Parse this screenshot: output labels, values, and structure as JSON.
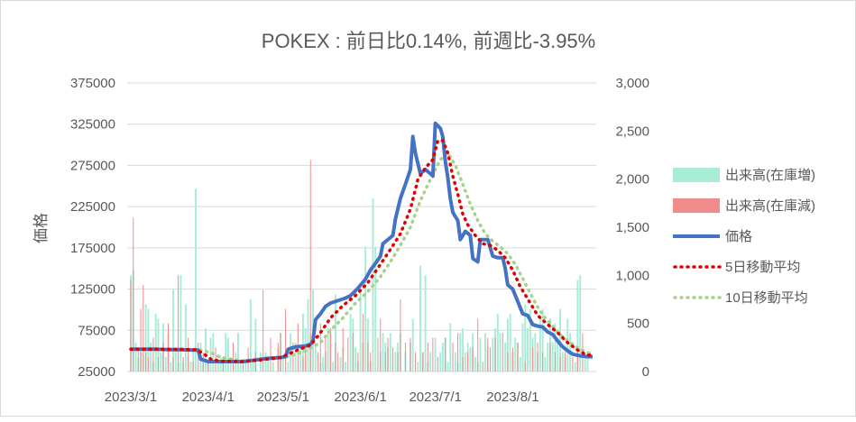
{
  "chart_data": {
    "type": "bar+line",
    "title": "POKEX : 前日比0.14%, 前週比-3.95%",
    "ylabel": "価格",
    "y_left": {
      "min": 25000,
      "max": 375000,
      "ticks": [
        "375000",
        "325000",
        "275000",
        "225000",
        "175000",
        "125000",
        "75000",
        "25000"
      ]
    },
    "y_right": {
      "min": 0,
      "max": 3000,
      "ticks": [
        "3,000",
        "2,500",
        "2,000",
        "1,500",
        "1,000",
        "500",
        "0"
      ]
    },
    "x_ticks": [
      "2023/3/1",
      "2023/4/1",
      "2023/5/1",
      "2023/6/1",
      "2023/7/1",
      "2023/8/1"
    ],
    "x_tick_days": [
      0,
      31,
      61,
      92,
      122,
      153
    ],
    "x_range_days": [
      0,
      185
    ],
    "legend": [
      {
        "key": "vol_inc",
        "label": "出来高(在庫増)",
        "color": "#a8ecd8",
        "style": "box"
      },
      {
        "key": "vol_dec",
        "label": "出来高(在庫減)",
        "color": "#f28b8b",
        "style": "box"
      },
      {
        "key": "price",
        "label": "価格",
        "color": "#4472c4",
        "style": "line"
      },
      {
        "key": "ma5",
        "label": "5日移動平均",
        "color": "#e00000",
        "style": "dotted"
      },
      {
        "key": "ma10",
        "label": "10日移動平均",
        "color": "#a9d18e",
        "style": "dotted"
      }
    ],
    "price_series": [
      [
        0,
        52000
      ],
      [
        5,
        52000
      ],
      [
        10,
        52000
      ],
      [
        15,
        51500
      ],
      [
        20,
        51500
      ],
      [
        25,
        51000
      ],
      [
        27,
        51000
      ],
      [
        28,
        40000
      ],
      [
        31,
        37000
      ],
      [
        35,
        37000
      ],
      [
        40,
        37000
      ],
      [
        45,
        37000
      ],
      [
        50,
        39000
      ],
      [
        55,
        41000
      ],
      [
        60,
        42000
      ],
      [
        62,
        43000
      ],
      [
        63,
        52000
      ],
      [
        66,
        55000
      ],
      [
        70,
        56000
      ],
      [
        72,
        58000
      ],
      [
        73,
        62000
      ],
      [
        74,
        88000
      ],
      [
        76,
        95000
      ],
      [
        78,
        104000
      ],
      [
        80,
        108000
      ],
      [
        83,
        111000
      ],
      [
        86,
        114000
      ],
      [
        88,
        117000
      ],
      [
        91,
        126000
      ],
      [
        94,
        137000
      ],
      [
        96,
        148000
      ],
      [
        98,
        156000
      ],
      [
        100,
        165000
      ],
      [
        101,
        180000
      ],
      [
        103,
        185000
      ],
      [
        105,
        190000
      ],
      [
        106,
        210000
      ],
      [
        108,
        235000
      ],
      [
        110,
        252000
      ],
      [
        112,
        270000
      ],
      [
        113,
        310000
      ],
      [
        114,
        290000
      ],
      [
        116,
        265000
      ],
      [
        118,
        270000
      ],
      [
        120,
        265000
      ],
      [
        121,
        262000
      ],
      [
        122,
        326000
      ],
      [
        124,
        320000
      ],
      [
        125,
        310000
      ],
      [
        126,
        280000
      ],
      [
        127,
        260000
      ],
      [
        128,
        235000
      ],
      [
        129,
        218000
      ],
      [
        131,
        208000
      ],
      [
        132,
        185000
      ],
      [
        134,
        195000
      ],
      [
        136,
        190000
      ],
      [
        137,
        162000
      ],
      [
        139,
        158000
      ],
      [
        140,
        185000
      ],
      [
        143,
        185000
      ],
      [
        145,
        165000
      ],
      [
        147,
        163000
      ],
      [
        149,
        163000
      ],
      [
        150,
        150000
      ],
      [
        151,
        130000
      ],
      [
        153,
        125000
      ],
      [
        155,
        110000
      ],
      [
        157,
        95000
      ],
      [
        159,
        93000
      ],
      [
        161,
        82000
      ],
      [
        163,
        80000
      ],
      [
        165,
        79000
      ],
      [
        167,
        73000
      ],
      [
        169,
        70000
      ],
      [
        171,
        62000
      ],
      [
        173,
        55000
      ],
      [
        175,
        50000
      ],
      [
        177,
        46000
      ],
      [
        180,
        44000
      ],
      [
        183,
        43000
      ],
      [
        185,
        43000
      ]
    ],
    "ma5_series": [
      [
        0,
        52000
      ],
      [
        15,
        52000
      ],
      [
        26,
        51500
      ],
      [
        29,
        47000
      ],
      [
        32,
        40000
      ],
      [
        36,
        37500
      ],
      [
        45,
        37000
      ],
      [
        52,
        39000
      ],
      [
        60,
        42000
      ],
      [
        66,
        50000
      ],
      [
        72,
        57000
      ],
      [
        76,
        72000
      ],
      [
        80,
        90000
      ],
      [
        85,
        105000
      ],
      [
        90,
        117000
      ],
      [
        95,
        133000
      ],
      [
        100,
        155000
      ],
      [
        104,
        173000
      ],
      [
        108,
        192000
      ],
      [
        112,
        222000
      ],
      [
        115,
        258000
      ],
      [
        118,
        272000
      ],
      [
        121,
        282000
      ],
      [
        123,
        305000
      ],
      [
        125,
        305000
      ],
      [
        127,
        290000
      ],
      [
        129,
        262000
      ],
      [
        131,
        240000
      ],
      [
        133,
        216000
      ],
      [
        135,
        203000
      ],
      [
        138,
        190000
      ],
      [
        141,
        180000
      ],
      [
        144,
        178000
      ],
      [
        147,
        172000
      ],
      [
        150,
        163000
      ],
      [
        153,
        148000
      ],
      [
        156,
        128000
      ],
      [
        160,
        108000
      ],
      [
        163,
        93000
      ],
      [
        167,
        82000
      ],
      [
        171,
        72000
      ],
      [
        175,
        60000
      ],
      [
        179,
        51000
      ],
      [
        182,
        46000
      ],
      [
        185,
        44000
      ]
    ],
    "ma10_series": [
      [
        0,
        52000
      ],
      [
        20,
        52000
      ],
      [
        28,
        51000
      ],
      [
        32,
        48000
      ],
      [
        36,
        42000
      ],
      [
        45,
        38000
      ],
      [
        55,
        40000
      ],
      [
        63,
        43000
      ],
      [
        70,
        50000
      ],
      [
        76,
        60000
      ],
      [
        80,
        75000
      ],
      [
        85,
        90000
      ],
      [
        90,
        108000
      ],
      [
        95,
        122000
      ],
      [
        100,
        140000
      ],
      [
        104,
        158000
      ],
      [
        108,
        178000
      ],
      [
        112,
        200000
      ],
      [
        116,
        232000
      ],
      [
        120,
        258000
      ],
      [
        124,
        282000
      ],
      [
        127,
        290000
      ],
      [
        130,
        275000
      ],
      [
        133,
        252000
      ],
      [
        136,
        228000
      ],
      [
        139,
        208000
      ],
      [
        142,
        192000
      ],
      [
        145,
        183000
      ],
      [
        148,
        176000
      ],
      [
        151,
        168000
      ],
      [
        154,
        155000
      ],
      [
        157,
        138000
      ],
      [
        160,
        120000
      ],
      [
        163,
        103000
      ],
      [
        166,
        90000
      ],
      [
        169,
        80000
      ],
      [
        172,
        70000
      ],
      [
        176,
        60000
      ],
      [
        180,
        52000
      ],
      [
        183,
        48000
      ],
      [
        185,
        46000
      ]
    ],
    "volume_increase": [
      [
        0,
        1000
      ],
      [
        1,
        1050
      ],
      [
        2,
        300
      ],
      [
        3,
        150
      ],
      [
        4,
        200
      ],
      [
        5,
        180
      ],
      [
        6,
        700
      ],
      [
        7,
        650
      ],
      [
        8,
        300
      ],
      [
        9,
        100
      ],
      [
        10,
        600
      ],
      [
        11,
        550
      ],
      [
        12,
        200
      ],
      [
        13,
        500
      ],
      [
        14,
        150
      ],
      [
        15,
        400
      ],
      [
        16,
        100
      ],
      [
        17,
        850
      ],
      [
        18,
        250
      ],
      [
        19,
        100
      ],
      [
        20,
        1000
      ],
      [
        21,
        100
      ],
      [
        22,
        700
      ],
      [
        23,
        150
      ],
      [
        24,
        100
      ],
      [
        25,
        200
      ],
      [
        26,
        1900
      ],
      [
        28,
        300
      ],
      [
        29,
        150
      ],
      [
        30,
        450
      ],
      [
        31,
        100
      ],
      [
        32,
        350
      ],
      [
        33,
        400
      ],
      [
        35,
        100
      ],
      [
        36,
        150
      ],
      [
        37,
        100
      ],
      [
        38,
        400
      ],
      [
        39,
        350
      ],
      [
        40,
        100
      ],
      [
        42,
        200
      ],
      [
        43,
        400
      ],
      [
        44,
        100
      ],
      [
        46,
        100
      ],
      [
        48,
        750
      ],
      [
        49,
        100
      ],
      [
        50,
        550
      ],
      [
        52,
        200
      ],
      [
        54,
        200
      ],
      [
        55,
        150
      ],
      [
        57,
        100
      ],
      [
        59,
        250
      ],
      [
        60,
        400
      ],
      [
        61,
        150
      ],
      [
        63,
        100
      ],
      [
        64,
        400
      ],
      [
        66,
        300
      ],
      [
        68,
        250
      ],
      [
        69,
        600
      ],
      [
        70,
        450
      ],
      [
        71,
        750
      ],
      [
        72,
        400
      ],
      [
        73,
        850
      ],
      [
        74,
        300
      ],
      [
        76,
        100
      ],
      [
        77,
        150
      ],
      [
        78,
        200
      ],
      [
        79,
        450
      ],
      [
        80,
        400
      ],
      [
        81,
        100
      ],
      [
        82,
        800
      ],
      [
        84,
        150
      ],
      [
        85,
        250
      ],
      [
        86,
        100
      ],
      [
        88,
        600
      ],
      [
        89,
        550
      ],
      [
        90,
        250
      ],
      [
        91,
        100
      ],
      [
        92,
        850
      ],
      [
        93,
        300
      ],
      [
        94,
        1300
      ],
      [
        95,
        550
      ],
      [
        96,
        100
      ],
      [
        97,
        1800
      ],
      [
        98,
        1300
      ],
      [
        100,
        200
      ],
      [
        101,
        400
      ],
      [
        102,
        300
      ],
      [
        103,
        250
      ],
      [
        104,
        400
      ],
      [
        106,
        200
      ],
      [
        107,
        300
      ],
      [
        108,
        400
      ],
      [
        110,
        200
      ],
      [
        112,
        300
      ],
      [
        113,
        550
      ],
      [
        115,
        100
      ],
      [
        116,
        1100
      ],
      [
        117,
        200
      ],
      [
        118,
        1000
      ],
      [
        119,
        100
      ],
      [
        120,
        200
      ],
      [
        122,
        350
      ],
      [
        124,
        200
      ],
      [
        125,
        300
      ],
      [
        126,
        350
      ],
      [
        127,
        100
      ],
      [
        128,
        500
      ],
      [
        130,
        200
      ],
      [
        131,
        100
      ],
      [
        132,
        400
      ],
      [
        133,
        450
      ],
      [
        134,
        200
      ],
      [
        135,
        300
      ],
      [
        136,
        250
      ],
      [
        137,
        400
      ],
      [
        138,
        150
      ],
      [
        139,
        100
      ],
      [
        140,
        350
      ],
      [
        142,
        400
      ],
      [
        143,
        250
      ],
      [
        145,
        350
      ],
      [
        146,
        450
      ],
      [
        147,
        600
      ],
      [
        148,
        400
      ],
      [
        150,
        300
      ],
      [
        151,
        550
      ],
      [
        152,
        600
      ],
      [
        153,
        200
      ],
      [
        154,
        350
      ],
      [
        155,
        300
      ],
      [
        156,
        150
      ],
      [
        157,
        500
      ],
      [
        158,
        700
      ],
      [
        159,
        450
      ],
      [
        160,
        650
      ],
      [
        161,
        350
      ],
      [
        162,
        400
      ],
      [
        163,
        200
      ],
      [
        164,
        550
      ],
      [
        165,
        650
      ],
      [
        166,
        150
      ],
      [
        167,
        300
      ],
      [
        168,
        550
      ],
      [
        169,
        300
      ],
      [
        170,
        500
      ],
      [
        171,
        350
      ],
      [
        172,
        650
      ],
      [
        173,
        200
      ],
      [
        174,
        150
      ],
      [
        175,
        550
      ],
      [
        176,
        400
      ],
      [
        178,
        100
      ],
      [
        179,
        950
      ],
      [
        180,
        1000
      ],
      [
        182,
        150
      ],
      [
        183,
        200
      ]
    ],
    "volume_decrease": [
      [
        0,
        950
      ],
      [
        1,
        1600
      ],
      [
        3,
        250
      ],
      [
        4,
        650
      ],
      [
        5,
        900
      ],
      [
        6,
        200
      ],
      [
        7,
        150
      ],
      [
        9,
        350
      ],
      [
        11,
        150
      ],
      [
        13,
        300
      ],
      [
        15,
        500
      ],
      [
        17,
        150
      ],
      [
        19,
        1000
      ],
      [
        21,
        150
      ],
      [
        23,
        350
      ],
      [
        25,
        100
      ],
      [
        27,
        300
      ],
      [
        29,
        200
      ],
      [
        31,
        100
      ],
      [
        34,
        250
      ],
      [
        37,
        150
      ],
      [
        41,
        300
      ],
      [
        45,
        100
      ],
      [
        47,
        250
      ],
      [
        50,
        200
      ],
      [
        53,
        850
      ],
      [
        56,
        350
      ],
      [
        59,
        300
      ],
      [
        60,
        400
      ],
      [
        62,
        650
      ],
      [
        65,
        300
      ],
      [
        67,
        500
      ],
      [
        69,
        150
      ],
      [
        70,
        250
      ],
      [
        72,
        2200
      ],
      [
        75,
        200
      ],
      [
        76,
        500
      ],
      [
        78,
        350
      ],
      [
        80,
        450
      ],
      [
        82,
        300
      ],
      [
        83,
        200
      ],
      [
        85,
        450
      ],
      [
        87,
        350
      ],
      [
        89,
        400
      ],
      [
        91,
        200
      ],
      [
        93,
        600
      ],
      [
        95,
        300
      ],
      [
        96,
        200
      ],
      [
        99,
        350
      ],
      [
        100,
        550
      ],
      [
        102,
        200
      ],
      [
        103,
        350
      ],
      [
        105,
        250
      ],
      [
        107,
        200
      ],
      [
        108,
        750
      ],
      [
        110,
        300
      ],
      [
        112,
        350
      ],
      [
        114,
        200
      ],
      [
        117,
        200
      ],
      [
        119,
        300
      ],
      [
        121,
        350
      ],
      [
        123,
        150
      ],
      [
        126,
        350
      ],
      [
        129,
        300
      ],
      [
        131,
        400
      ],
      [
        133,
        150
      ],
      [
        135,
        200
      ],
      [
        137,
        250
      ],
      [
        139,
        550
      ],
      [
        141,
        100
      ],
      [
        143,
        350
      ],
      [
        144,
        250
      ],
      [
        146,
        350
      ],
      [
        149,
        400
      ],
      [
        151,
        200
      ],
      [
        153,
        250
      ],
      [
        155,
        300
      ],
      [
        158,
        100
      ],
      [
        161,
        250
      ],
      [
        163,
        300
      ],
      [
        165,
        200
      ],
      [
        168,
        300
      ],
      [
        170,
        200
      ],
      [
        172,
        150
      ],
      [
        174,
        200
      ],
      [
        177,
        150
      ],
      [
        179,
        200
      ],
      [
        181,
        400
      ]
    ]
  }
}
